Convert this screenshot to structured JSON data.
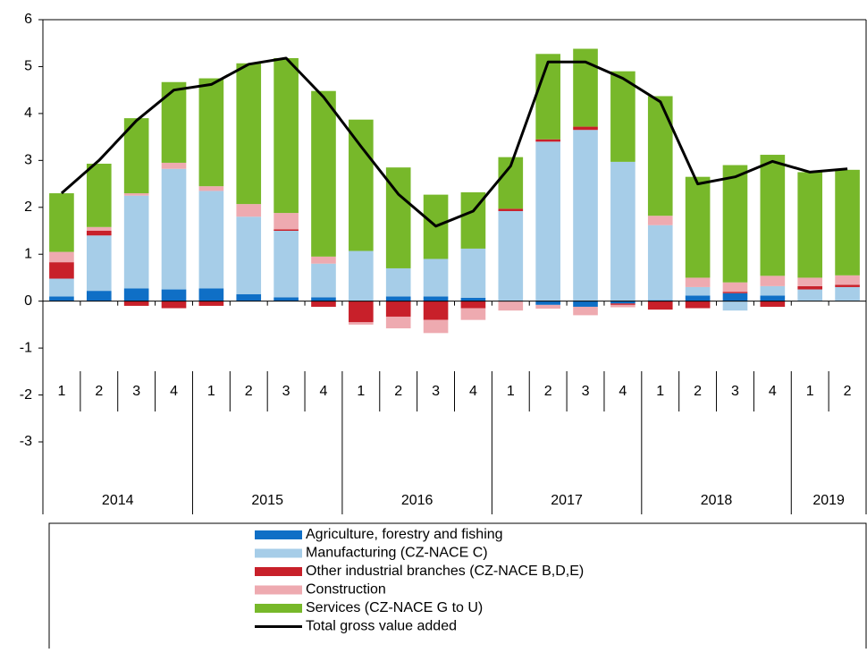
{
  "chart_data": {
    "type": "bar",
    "stacked": true,
    "categories": [
      "1",
      "2",
      "3",
      "4",
      "1",
      "2",
      "3",
      "4",
      "1",
      "2",
      "3",
      "4",
      "1",
      "2",
      "3",
      "4",
      "1",
      "2",
      "3",
      "4",
      "1",
      "2"
    ],
    "category_groups": [
      {
        "label": "2014",
        "count": 4
      },
      {
        "label": "2015",
        "count": 4
      },
      {
        "label": "2016",
        "count": 4
      },
      {
        "label": "2017",
        "count": 4
      },
      {
        "label": "2018",
        "count": 4
      },
      {
        "label": "2019",
        "count": 2
      }
    ],
    "ylim": [
      -3,
      6
    ],
    "yticks": [
      -3,
      -2,
      -1,
      0,
      1,
      2,
      3,
      4,
      5,
      6
    ],
    "series": [
      {
        "name": "Agriculture, forestry and fishing",
        "color": "#0f6fc6",
        "values": [
          0.1,
          0.22,
          0.27,
          0.25,
          0.27,
          0.15,
          0.08,
          0.08,
          0,
          0.1,
          0.1,
          0.07,
          0,
          -0.08,
          -0.12,
          -0.05,
          0.02,
          0.12,
          0.17,
          0.12,
          0,
          0
        ]
      },
      {
        "name": "Manufacturing (CZ-NACE C)",
        "color": "#a6cde8",
        "values": [
          0.38,
          1.18,
          1.98,
          2.57,
          2.08,
          1.65,
          1.42,
          0.72,
          1.07,
          0.6,
          0.8,
          1.05,
          1.92,
          3.4,
          3.65,
          2.97,
          1.6,
          0.18,
          -0.2,
          0.2,
          0.25,
          0.3
        ]
      },
      {
        "name": "Other industrial branches (CZ-NACE B,D,E)",
        "color": "#c8202a",
        "values": [
          0.35,
          0.1,
          -0.1,
          -0.15,
          -0.1,
          0,
          0.03,
          -0.12,
          -0.45,
          -0.33,
          -0.4,
          -0.15,
          0.05,
          0.05,
          0.07,
          -0.03,
          -0.18,
          -0.15,
          0.03,
          -0.12,
          0.07,
          0.05
        ]
      },
      {
        "name": "Construction",
        "color": "#eeaab0",
        "values": [
          0.22,
          0.08,
          0.05,
          0.13,
          0.1,
          0.27,
          0.35,
          0.15,
          -0.05,
          -0.25,
          -0.28,
          -0.25,
          -0.2,
          -0.08,
          -0.18,
          -0.05,
          0.2,
          0.2,
          0.2,
          0.22,
          0.18,
          0.2
        ]
      },
      {
        "name": "Services (CZ-NACE G to U)",
        "color": "#77b82a",
        "values": [
          1.25,
          1.35,
          1.6,
          1.72,
          2.3,
          3.0,
          3.3,
          3.53,
          2.8,
          2.15,
          1.37,
          1.2,
          1.1,
          1.82,
          1.66,
          1.93,
          2.55,
          2.15,
          2.5,
          2.58,
          2.25,
          2.25
        ]
      },
      {
        "name": "Total gross value added",
        "color": "#000000",
        "type": "line",
        "values": [
          2.3,
          3.0,
          3.85,
          4.5,
          4.62,
          5.05,
          5.18,
          4.35,
          3.3,
          2.28,
          1.6,
          1.92,
          2.88,
          5.1,
          5.1,
          4.75,
          4.25,
          2.5,
          2.65,
          2.98,
          2.75,
          2.82
        ]
      }
    ]
  }
}
